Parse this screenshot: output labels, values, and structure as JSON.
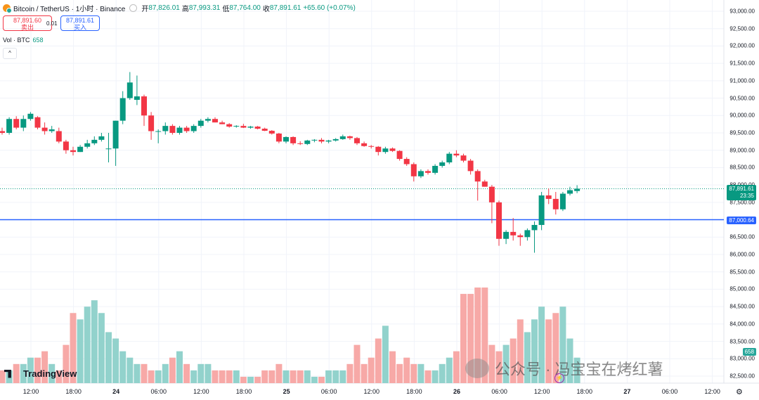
{
  "header": {
    "title": "Bitcoin / TetherUS · 1小时 · Binance",
    "open_label": "开",
    "open": "87,826.01",
    "high_label": "高",
    "high": "87,993.31",
    "low_label": "低",
    "low": "87,764.00",
    "close_label": "收",
    "close": "87,891.61",
    "change": "+65.60 (+0.07%)"
  },
  "trade": {
    "sell_price": "87,891.60",
    "sell_label": "卖出",
    "spread": "0.01",
    "buy_price": "87,891.61",
    "buy_label": "买入"
  },
  "volume_legend": {
    "label": "Vol · BTC",
    "value": "658"
  },
  "collapse_icon": "^",
  "price_axis": {
    "ticks": [
      "93,000.00",
      "92,500.00",
      "92,000.00",
      "91,500.00",
      "91,000.00",
      "90,500.00",
      "90,000.00",
      "89,500.00",
      "89,000.00",
      "88,500.00",
      "88,000.00",
      "87,500.00",
      "87,000.00",
      "86,500.00",
      "86,000.00",
      "85,500.00",
      "85,000.00",
      "84,500.00",
      "84,000.00",
      "83,500.00",
      "83,000.00",
      "82,500.00"
    ]
  },
  "labels": {
    "last_price": "87,891.61",
    "countdown": "23:35",
    "line_price": "87,000.64",
    "volume": "658"
  },
  "time_axis": {
    "ticks": [
      "12:00",
      "18:00",
      "24",
      "06:00",
      "12:00",
      "18:00",
      "25",
      "06:00",
      "12:00",
      "18:00",
      "26",
      "06:00",
      "12:00",
      "18:00",
      "27",
      "06:00",
      "12:00"
    ]
  },
  "branding": {
    "logo_text": "TradingView"
  },
  "watermark": "公众号 · 冯宝宝在烤红薯",
  "colors": {
    "up": "#089981",
    "down": "#f23645",
    "up_vol": "#92d2cc",
    "down_vol": "#f7a9a7",
    "line": "#2962ff"
  },
  "chart_data": {
    "type": "candlestick",
    "interval": "1h",
    "ylim": [
      82500,
      93000
    ],
    "horizontal_line": 87000.64,
    "last_price": 87891.61,
    "ohlc": [
      [
        89550,
        89650,
        89450,
        89500
      ],
      [
        89500,
        89950,
        89450,
        89900
      ],
      [
        89900,
        89980,
        89600,
        89650
      ],
      [
        89650,
        90000,
        89550,
        89900
      ],
      [
        89900,
        90100,
        89850,
        90050
      ],
      [
        89950,
        89980,
        89600,
        89650
      ],
      [
        89650,
        89800,
        89450,
        89550
      ],
      [
        89550,
        89700,
        89500,
        89600
      ],
      [
        89550,
        89650,
        89200,
        89250
      ],
      [
        89250,
        89300,
        88900,
        89000
      ],
      [
        89000,
        89100,
        88850,
        88950
      ],
      [
        88950,
        89150,
        88950,
        89100
      ],
      [
        89100,
        89300,
        89050,
        89200
      ],
      [
        89200,
        89400,
        89150,
        89300
      ],
      [
        89300,
        89500,
        89250,
        89400
      ],
      [
        89050,
        89500,
        88650,
        89050
      ],
      [
        89050,
        89850,
        88550,
        89850
      ],
      [
        89850,
        90700,
        89750,
        90500
      ],
      [
        90500,
        91250,
        90450,
        90950
      ],
      [
        90450,
        91150,
        90300,
        90550
      ],
      [
        90550,
        90600,
        89700,
        90000
      ],
      [
        90000,
        90100,
        89300,
        89550
      ],
      [
        89550,
        89600,
        89200,
        89550
      ],
      [
        89550,
        89800,
        89450,
        89700
      ],
      [
        89700,
        89750,
        89450,
        89500
      ],
      [
        89500,
        89700,
        89450,
        89650
      ],
      [
        89650,
        89700,
        89500,
        89550
      ],
      [
        89550,
        89750,
        89500,
        89700
      ],
      [
        89700,
        89900,
        89650,
        89850
      ],
      [
        89850,
        89950,
        89800,
        89900
      ],
      [
        89900,
        89950,
        89800,
        89800
      ],
      [
        89800,
        89850,
        89750,
        89750
      ],
      [
        89750,
        89780,
        89650,
        89680
      ],
      [
        89680,
        89720,
        89650,
        89700
      ],
      [
        89700,
        89760,
        89640,
        89650
      ],
      [
        89650,
        89700,
        89620,
        89680
      ],
      [
        89680,
        89700,
        89600,
        89620
      ],
      [
        89620,
        89650,
        89550,
        89560
      ],
      [
        89560,
        89580,
        89450,
        89480
      ],
      [
        89480,
        89500,
        89200,
        89250
      ],
      [
        89250,
        89400,
        89200,
        89380
      ],
      [
        89380,
        89400,
        89150,
        89200
      ],
      [
        89200,
        89260,
        89150,
        89180
      ],
      [
        89180,
        89300,
        89150,
        89280
      ],
      [
        89280,
        89320,
        89230,
        89300
      ],
      [
        89300,
        89350,
        89200,
        89250
      ],
      [
        89250,
        89300,
        89200,
        89280
      ],
      [
        89280,
        89350,
        89250,
        89320
      ],
      [
        89320,
        89450,
        89300,
        89400
      ],
      [
        89400,
        89420,
        89300,
        89350
      ],
      [
        89350,
        89380,
        89150,
        89200
      ],
      [
        89200,
        89250,
        89100,
        89120
      ],
      [
        89120,
        89150,
        89050,
        89100
      ],
      [
        89100,
        89120,
        88850,
        88950
      ],
      [
        88950,
        89100,
        88900,
        89050
      ],
      [
        89050,
        89080,
        88950,
        88980
      ],
      [
        88980,
        89000,
        88700,
        88750
      ],
      [
        88750,
        88800,
        88550,
        88600
      ],
      [
        88600,
        88650,
        88100,
        88250
      ],
      [
        88250,
        88450,
        88200,
        88400
      ],
      [
        88400,
        88450,
        88300,
        88350
      ],
      [
        88350,
        88600,
        88300,
        88550
      ],
      [
        88550,
        88700,
        88500,
        88650
      ],
      [
        88650,
        88950,
        88600,
        88900
      ],
      [
        88900,
        89000,
        88800,
        88850
      ],
      [
        88850,
        88900,
        88650,
        88700
      ],
      [
        88700,
        88750,
        88300,
        88400
      ],
      [
        88400,
        88450,
        87550,
        88100
      ],
      [
        88100,
        88150,
        87950,
        87950
      ],
      [
        87950,
        88000,
        86900,
        87500
      ],
      [
        87500,
        87550,
        86250,
        86450
      ],
      [
        86450,
        86700,
        86300,
        86650
      ],
      [
        86650,
        87050,
        86400,
        86550
      ],
      [
        86550,
        86600,
        86250,
        86500
      ],
      [
        86500,
        86750,
        86400,
        86700
      ],
      [
        86700,
        86950,
        86050,
        86850
      ],
      [
        86850,
        87800,
        86700,
        87700
      ],
      [
        87700,
        87900,
        87450,
        87600
      ],
      [
        87600,
        87800,
        87150,
        87300
      ],
      [
        87300,
        87800,
        87250,
        87750
      ],
      [
        87750,
        87950,
        87700,
        87850
      ],
      [
        87826,
        87993,
        87764,
        87891
      ]
    ],
    "volume_rel": [
      2,
      2,
      3,
      3,
      4,
      4,
      5,
      3,
      2,
      6,
      11,
      10,
      12,
      13,
      11,
      8,
      7,
      5,
      4,
      3,
      3,
      2,
      2,
      3,
      4,
      5,
      3,
      2,
      3,
      3,
      2,
      2,
      2,
      2,
      1,
      1,
      1,
      2,
      2,
      3,
      2,
      2,
      2,
      2,
      1,
      1,
      2,
      2,
      2,
      3,
      6,
      3,
      4,
      7,
      9,
      5,
      3,
      4,
      3,
      3,
      2,
      2,
      3,
      4,
      5,
      14,
      14,
      15,
      15,
      6,
      5,
      6,
      7,
      10,
      8,
      10,
      12,
      10,
      11,
      12,
      7,
      4
    ]
  }
}
